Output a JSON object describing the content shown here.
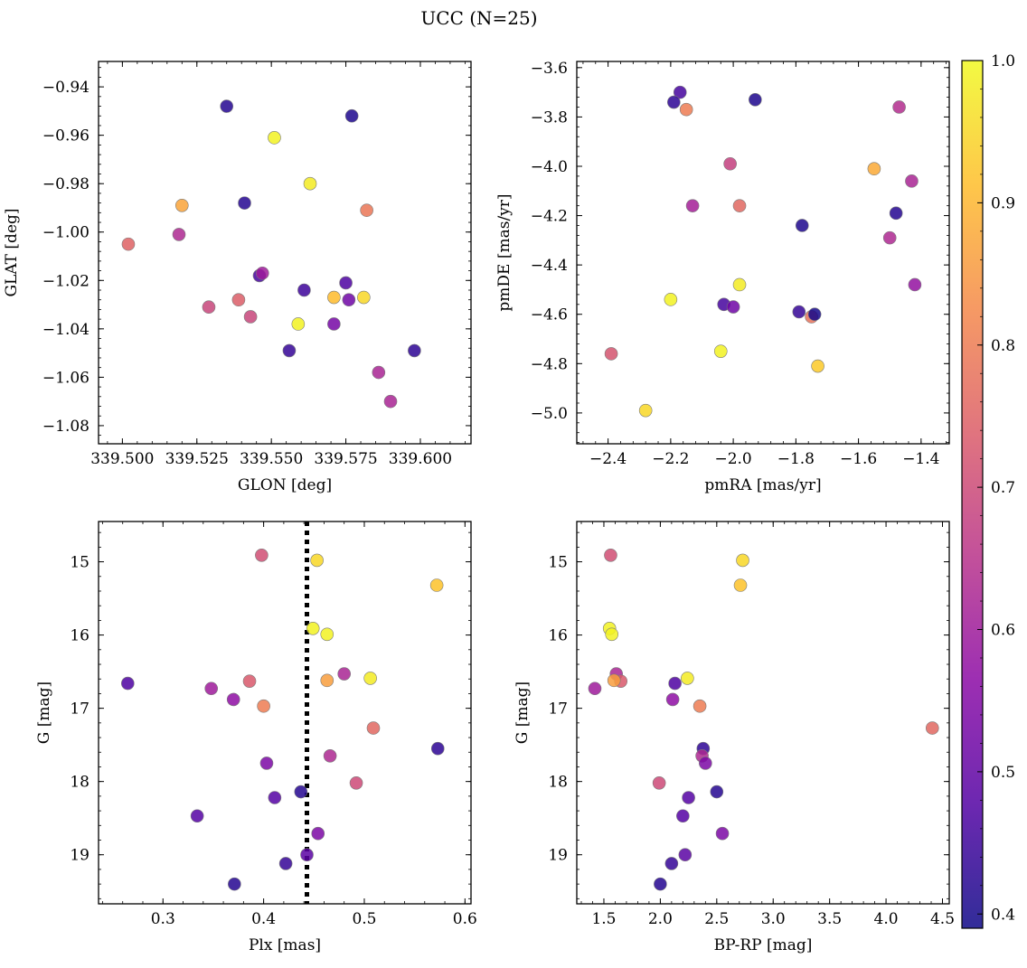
{
  "figure": {
    "title": "UCC (N=25)"
  },
  "colorbar": {
    "ticks": [
      "0.4",
      "0.5",
      "0.6",
      "0.7",
      "0.8",
      "0.9",
      "1.0"
    ],
    "min": 0.39,
    "max": 1.0,
    "colormap": "plasma",
    "colors": [
      "#0d0887",
      "#5302a3",
      "#8b0aa5",
      "#b83289",
      "#db5c68",
      "#f48849",
      "#febd2a",
      "#f0f921"
    ]
  },
  "chart_data": [
    {
      "type": "scatter",
      "xlabel": "GLON [deg]",
      "ylabel": "GLAT [deg]",
      "xlim": [
        339.492,
        339.617
      ],
      "ylim": [
        -1.0875,
        -0.9295
      ],
      "x_ticks": [
        "339.500",
        "339.525",
        "339.550",
        "339.575",
        "339.600"
      ],
      "y_ticks": [
        "−0.94",
        "−0.96",
        "−0.98",
        "−1.00",
        "−1.02",
        "−1.04",
        "−1.06",
        "−1.08"
      ],
      "points": [
        {
          "x": 339.535,
          "y": -0.948,
          "c": 0.42
        },
        {
          "x": 339.577,
          "y": -0.952,
          "c": 0.41
        },
        {
          "x": 339.551,
          "y": -0.961,
          "c": 0.99
        },
        {
          "x": 339.563,
          "y": -0.98,
          "c": 0.98
        },
        {
          "x": 339.52,
          "y": -0.989,
          "c": 0.87
        },
        {
          "x": 339.541,
          "y": -0.988,
          "c": 0.42
        },
        {
          "x": 339.582,
          "y": -0.991,
          "c": 0.79
        },
        {
          "x": 339.502,
          "y": -1.005,
          "c": 0.75
        },
        {
          "x": 339.519,
          "y": -1.001,
          "c": 0.63
        },
        {
          "x": 339.546,
          "y": -1.018,
          "c": 0.46
        },
        {
          "x": 339.547,
          "y": -1.017,
          "c": 0.6
        },
        {
          "x": 339.561,
          "y": -1.024,
          "c": 0.45
        },
        {
          "x": 339.575,
          "y": -1.021,
          "c": 0.47
        },
        {
          "x": 339.571,
          "y": -1.027,
          "c": 0.91
        },
        {
          "x": 339.581,
          "y": -1.027,
          "c": 0.95
        },
        {
          "x": 339.529,
          "y": -1.031,
          "c": 0.69
        },
        {
          "x": 339.539,
          "y": -1.028,
          "c": 0.74
        },
        {
          "x": 339.576,
          "y": -1.028,
          "c": 0.52
        },
        {
          "x": 339.543,
          "y": -1.035,
          "c": 0.69
        },
        {
          "x": 339.559,
          "y": -1.038,
          "c": 0.99
        },
        {
          "x": 339.571,
          "y": -1.038,
          "c": 0.53
        },
        {
          "x": 339.556,
          "y": -1.049,
          "c": 0.44
        },
        {
          "x": 339.598,
          "y": -1.049,
          "c": 0.43
        },
        {
          "x": 339.586,
          "y": -1.058,
          "c": 0.62
        },
        {
          "x": 339.59,
          "y": -1.07,
          "c": 0.62
        }
      ]
    },
    {
      "type": "scatter",
      "xlabel": "pmRA [mas/yr]",
      "ylabel": "pmDE [mas/yr]",
      "xlim": [
        -2.5,
        -1.31
      ],
      "ylim": [
        -5.125,
        -3.575
      ],
      "x_ticks": [
        "−2.4",
        "−2.2",
        "−2.0",
        "−1.8",
        "−1.6",
        "−1.4"
      ],
      "y_ticks": [
        "−3.6",
        "−3.8",
        "−4.0",
        "−4.2",
        "−4.4",
        "−4.6",
        "−4.8",
        "−5.0"
      ],
      "points": [
        {
          "x": -2.17,
          "y": -3.7,
          "c": 0.46
        },
        {
          "x": -2.19,
          "y": -3.74,
          "c": 0.43
        },
        {
          "x": -2.15,
          "y": -3.77,
          "c": 0.8
        },
        {
          "x": -1.93,
          "y": -3.73,
          "c": 0.41
        },
        {
          "x": -1.47,
          "y": -3.76,
          "c": 0.64
        },
        {
          "x": -2.01,
          "y": -3.99,
          "c": 0.68
        },
        {
          "x": -1.55,
          "y": -4.01,
          "c": 0.88
        },
        {
          "x": -1.43,
          "y": -4.06,
          "c": 0.62
        },
        {
          "x": -2.13,
          "y": -4.16,
          "c": 0.61
        },
        {
          "x": -1.98,
          "y": -4.16,
          "c": 0.76
        },
        {
          "x": -1.48,
          "y": -4.19,
          "c": 0.42
        },
        {
          "x": -1.78,
          "y": -4.24,
          "c": 0.41
        },
        {
          "x": -1.5,
          "y": -4.29,
          "c": 0.63
        },
        {
          "x": -1.42,
          "y": -4.48,
          "c": 0.58
        },
        {
          "x": -2.2,
          "y": -4.54,
          "c": 0.99
        },
        {
          "x": -1.98,
          "y": -4.48,
          "c": 0.98
        },
        {
          "x": -2.03,
          "y": -4.56,
          "c": 0.46
        },
        {
          "x": -2.0,
          "y": -4.57,
          "c": 0.52
        },
        {
          "x": -1.79,
          "y": -4.59,
          "c": 0.44
        },
        {
          "x": -1.75,
          "y": -4.61,
          "c": 0.78
        },
        {
          "x": -1.74,
          "y": -4.6,
          "c": 0.4
        },
        {
          "x": -2.04,
          "y": -4.75,
          "c": 0.99
        },
        {
          "x": -2.39,
          "y": -4.76,
          "c": 0.72
        },
        {
          "x": -1.73,
          "y": -4.81,
          "c": 0.93
        },
        {
          "x": -2.28,
          "y": -4.99,
          "c": 0.95
        }
      ]
    },
    {
      "type": "scatter",
      "xlabel": "Plx [mas]",
      "ylabel": "G [mag]",
      "xlim": [
        0.236,
        0.606
      ],
      "ylim": [
        19.67,
        14.45
      ],
      "y_inverted": true,
      "x_ticks": [
        "0.3",
        "0.4",
        "0.5",
        "0.6"
      ],
      "y_ticks": [
        "15",
        "16",
        "17",
        "18",
        "19"
      ],
      "vline": {
        "x": 0.443,
        "style": "dotted"
      },
      "points": [
        {
          "x": 0.398,
          "y": 14.91,
          "c": 0.71
        },
        {
          "x": 0.453,
          "y": 14.98,
          "c": 0.95
        },
        {
          "x": 0.572,
          "y": 15.32,
          "c": 0.92
        },
        {
          "x": 0.449,
          "y": 15.91,
          "c": 0.99
        },
        {
          "x": 0.463,
          "y": 15.99,
          "c": 0.99
        },
        {
          "x": 0.48,
          "y": 16.53,
          "c": 0.62
        },
        {
          "x": 0.506,
          "y": 16.59,
          "c": 0.98
        },
        {
          "x": 0.386,
          "y": 16.63,
          "c": 0.73
        },
        {
          "x": 0.463,
          "y": 16.62,
          "c": 0.86
        },
        {
          "x": 0.265,
          "y": 16.66,
          "c": 0.47
        },
        {
          "x": 0.348,
          "y": 16.73,
          "c": 0.6
        },
        {
          "x": 0.37,
          "y": 16.88,
          "c": 0.57
        },
        {
          "x": 0.4,
          "y": 16.97,
          "c": 0.8
        },
        {
          "x": 0.509,
          "y": 17.27,
          "c": 0.76
        },
        {
          "x": 0.573,
          "y": 17.55,
          "c": 0.43
        },
        {
          "x": 0.466,
          "y": 17.65,
          "c": 0.63
        },
        {
          "x": 0.403,
          "y": 17.75,
          "c": 0.54
        },
        {
          "x": 0.492,
          "y": 18.02,
          "c": 0.7
        },
        {
          "x": 0.437,
          "y": 18.14,
          "c": 0.42
        },
        {
          "x": 0.411,
          "y": 18.22,
          "c": 0.48
        },
        {
          "x": 0.334,
          "y": 18.47,
          "c": 0.48
        },
        {
          "x": 0.454,
          "y": 18.71,
          "c": 0.54
        },
        {
          "x": 0.443,
          "y": 19.0,
          "c": 0.49
        },
        {
          "x": 0.422,
          "y": 19.12,
          "c": 0.44
        },
        {
          "x": 0.371,
          "y": 19.4,
          "c": 0.42
        }
      ]
    },
    {
      "type": "scatter",
      "xlabel": "BP-RP [mag]",
      "ylabel": "G [mag]",
      "xlim": [
        1.26,
        4.56
      ],
      "ylim": [
        19.67,
        14.45
      ],
      "y_inverted": true,
      "x_ticks": [
        "1.5",
        "2.0",
        "2.5",
        "3.0",
        "3.5",
        "4.0",
        "4.5"
      ],
      "y_ticks": [
        "15",
        "16",
        "17",
        "18",
        "19"
      ],
      "points": [
        {
          "x": 1.56,
          "y": 14.91,
          "c": 0.71
        },
        {
          "x": 2.73,
          "y": 14.98,
          "c": 0.95
        },
        {
          "x": 2.71,
          "y": 15.32,
          "c": 0.92
        },
        {
          "x": 1.55,
          "y": 15.91,
          "c": 0.99
        },
        {
          "x": 1.57,
          "y": 15.99,
          "c": 0.99
        },
        {
          "x": 1.61,
          "y": 16.53,
          "c": 0.62
        },
        {
          "x": 2.24,
          "y": 16.59,
          "c": 0.98
        },
        {
          "x": 1.65,
          "y": 16.63,
          "c": 0.73
        },
        {
          "x": 1.59,
          "y": 16.62,
          "c": 0.86
        },
        {
          "x": 2.13,
          "y": 16.66,
          "c": 0.47
        },
        {
          "x": 1.42,
          "y": 16.73,
          "c": 0.6
        },
        {
          "x": 2.11,
          "y": 16.88,
          "c": 0.57
        },
        {
          "x": 2.35,
          "y": 16.97,
          "c": 0.8
        },
        {
          "x": 4.41,
          "y": 17.27,
          "c": 0.76
        },
        {
          "x": 2.38,
          "y": 17.55,
          "c": 0.43
        },
        {
          "x": 2.37,
          "y": 17.65,
          "c": 0.63
        },
        {
          "x": 2.4,
          "y": 17.75,
          "c": 0.54
        },
        {
          "x": 1.99,
          "y": 18.02,
          "c": 0.7
        },
        {
          "x": 2.5,
          "y": 18.14,
          "c": 0.42
        },
        {
          "x": 2.25,
          "y": 18.22,
          "c": 0.48
        },
        {
          "x": 2.2,
          "y": 18.47,
          "c": 0.48
        },
        {
          "x": 2.55,
          "y": 18.71,
          "c": 0.54
        },
        {
          "x": 2.22,
          "y": 19.0,
          "c": 0.49
        },
        {
          "x": 2.1,
          "y": 19.12,
          "c": 0.44
        },
        {
          "x": 2.0,
          "y": 19.4,
          "c": 0.42
        }
      ]
    }
  ]
}
